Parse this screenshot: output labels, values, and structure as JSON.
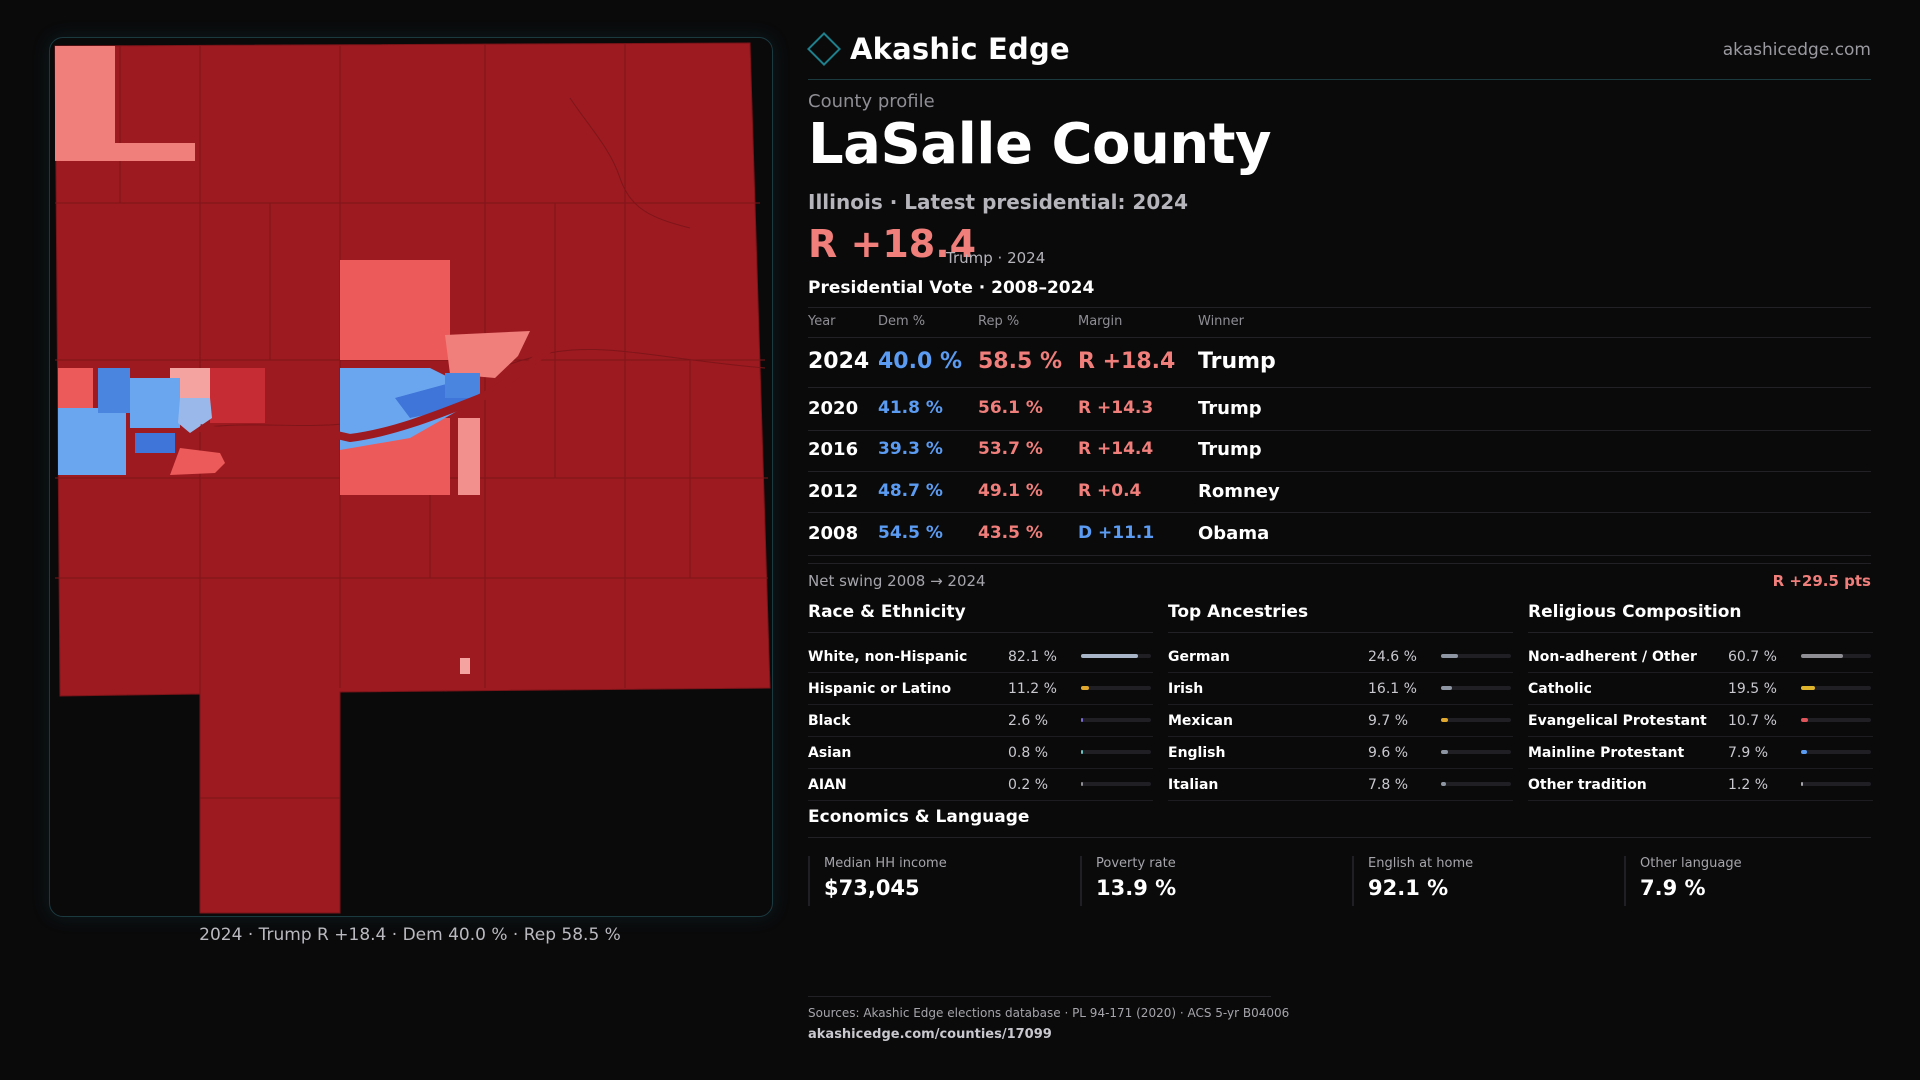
{
  "brand": {
    "name": "Akashic Edge",
    "site": "akashicedge.com",
    "accent": "#1f7f8c"
  },
  "profile": {
    "eyebrow": "County profile",
    "title": "LaSalle County",
    "subtitle": "Illinois · Latest presidential: 2024",
    "margin": "R +18.4",
    "margin_sub": "Trump · 2024"
  },
  "vote": {
    "title": "Presidential Vote · 2008–2024",
    "headers": {
      "year": "Year",
      "dem": "Dem %",
      "rep": "Rep %",
      "margin": "Margin",
      "winner": "Winner"
    },
    "rows": [
      {
        "year": "2024",
        "dem": "40.0 %",
        "rep": "58.5 %",
        "margin": "R +18.4",
        "party": "rep",
        "winner": "Trump"
      },
      {
        "year": "2020",
        "dem": "41.8 %",
        "rep": "56.1 %",
        "margin": "R +14.3",
        "party": "rep",
        "winner": "Trump"
      },
      {
        "year": "2016",
        "dem": "39.3 %",
        "rep": "53.7 %",
        "margin": "R +14.4",
        "party": "rep",
        "winner": "Trump"
      },
      {
        "year": "2012",
        "dem": "48.7 %",
        "rep": "49.1 %",
        "margin": "R +0.4",
        "party": "rep",
        "winner": "Romney"
      },
      {
        "year": "2008",
        "dem": "54.5 %",
        "rep": "43.5 %",
        "margin": "D +11.1",
        "party": "dem",
        "winner": "Obama"
      }
    ],
    "swing_label": "Net swing 2008 → 2024",
    "swing_value": "R +29.5 pts"
  },
  "panels": [
    {
      "title": "Race & Ethnicity",
      "items": [
        {
          "label": "White, non-Hispanic",
          "value": "82.1 %",
          "share": 0.821,
          "color": "#a8b4c8"
        },
        {
          "label": "Hispanic or Latino",
          "value": "11.2 %",
          "share": 0.112,
          "color": "#e0a82e"
        },
        {
          "label": "Black",
          "value": "2.6 %",
          "share": 0.026,
          "color": "#7a6cd6"
        },
        {
          "label": "Asian",
          "value": "0.8 %",
          "share": 0.008,
          "color": "#6fc2c2"
        },
        {
          "label": "AIAN",
          "value": "0.2 %",
          "share": 0.002,
          "color": "#8e8e94"
        }
      ]
    },
    {
      "title": "Top Ancestries",
      "items": [
        {
          "label": "German",
          "value": "24.6 %",
          "share": 0.246,
          "color": "#8e96a3"
        },
        {
          "label": "Irish",
          "value": "16.1 %",
          "share": 0.161,
          "color": "#8e96a3"
        },
        {
          "label": "Mexican",
          "value": "9.7 %",
          "share": 0.097,
          "color": "#e0a82e"
        },
        {
          "label": "English",
          "value": "9.6 %",
          "share": 0.096,
          "color": "#8e96a3"
        },
        {
          "label": "Italian",
          "value": "7.8 %",
          "share": 0.078,
          "color": "#8e96a3"
        }
      ]
    },
    {
      "title": "Religious Composition",
      "items": [
        {
          "label": "Non-adherent / Other",
          "value": "60.7 %",
          "share": 0.607,
          "color": "#8e8e94"
        },
        {
          "label": "Catholic",
          "value": "19.5 %",
          "share": 0.195,
          "color": "#e0b52e"
        },
        {
          "label": "Evangelical Protestant",
          "value": "10.7 %",
          "share": 0.107,
          "color": "#e0555a"
        },
        {
          "label": "Mainline Protestant",
          "value": "7.9 %",
          "share": 0.079,
          "color": "#5b9cf2"
        },
        {
          "label": "Other tradition",
          "value": "1.2 %",
          "share": 0.012,
          "color": "#a5a5ab"
        }
      ]
    }
  ],
  "economics": {
    "title": "Economics & Language",
    "stats": [
      {
        "label": "Median HH income",
        "value": "$73,045"
      },
      {
        "label": "Poverty rate",
        "value": "13.9 %"
      },
      {
        "label": "English at home",
        "value": "92.1 %"
      },
      {
        "label": "Other language",
        "value": "7.9 %"
      }
    ]
  },
  "map": {
    "caption": "2024 · Trump R +18.4 · Dem 40.0 % · Rep 58.5 %"
  },
  "footer": {
    "sources": "Sources: Akashic Edge elections database · PL 94-171 (2020) · ACS 5-yr B04006",
    "url": "akashicedge.com/counties/17099"
  }
}
